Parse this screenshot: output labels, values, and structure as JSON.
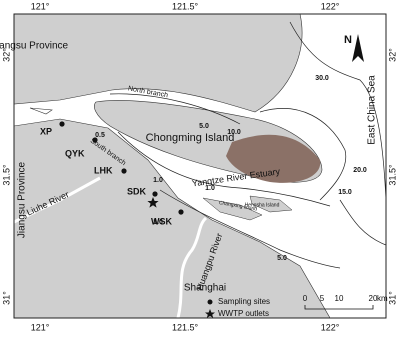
{
  "map": {
    "lon_labels": [
      "121°",
      "121.5°",
      "122°"
    ],
    "lat_labels": [
      "32°",
      "31.5°",
      "31°"
    ],
    "places": [
      "Jiangsu Province",
      "Jiangsu Province",
      "Chongming Island",
      "North branch",
      "South branch",
      "Liuhe River",
      "Huangpu River",
      "Shanghai",
      "East China Sea",
      "Yangtze River Estuary",
      "Changxing Island",
      "Hengsha Island"
    ],
    "sites": [
      "XP",
      "QYK",
      "LHK",
      "SDK",
      "WSK"
    ],
    "depth_labels": [
      "0.5",
      "1.0",
      "5.0",
      "10.0",
      "30.0",
      "20.0",
      "15.0",
      "1.0",
      "1.0",
      "5.0"
    ],
    "legend": [
      "Sampling sites",
      "WWTP outlets"
    ],
    "scale": {
      "ticks": [
        "0",
        "5",
        "10",
        "20"
      ],
      "unit": "km"
    },
    "north": "N"
  }
}
